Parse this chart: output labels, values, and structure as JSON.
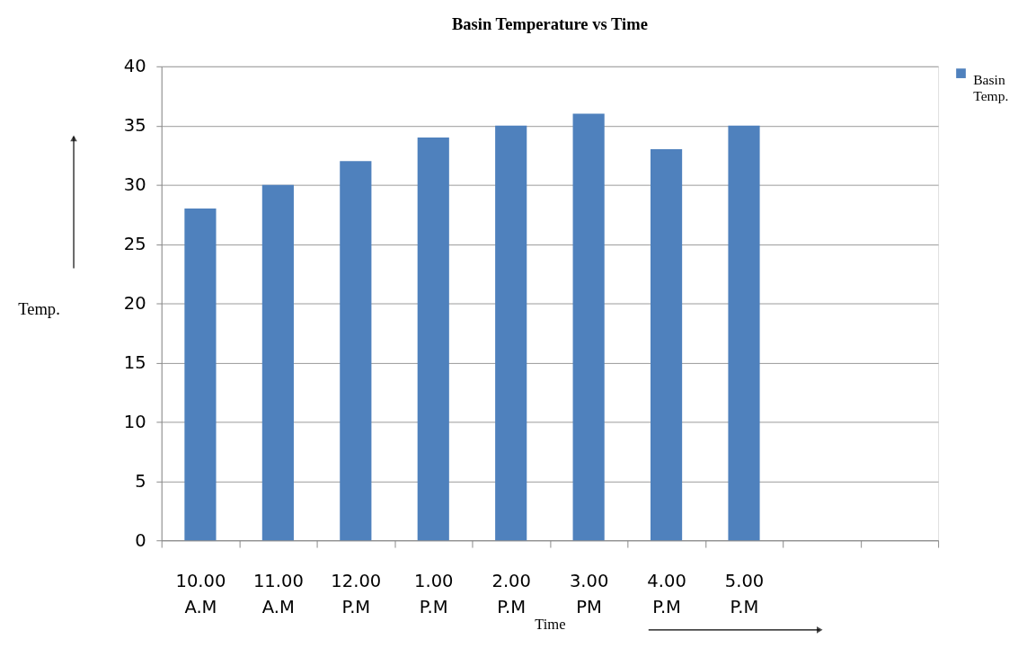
{
  "chart_data": {
    "type": "bar",
    "title": "Basin Temperature vs Time",
    "xlabel": "Time",
    "ylabel": "Temp.",
    "categories": [
      "10.00 A.M",
      "11.00 A.M",
      "12.00 P.M",
      "1.00 P.M",
      "2.00 P.M",
      "3.00 PM",
      "4.00 P.M",
      "5.00 P.M",
      null,
      null
    ],
    "series": [
      {
        "name": "Basin Temp.",
        "color": "#4f81bd",
        "values": [
          28,
          30,
          32,
          34,
          35,
          36,
          33,
          35,
          null,
          null
        ]
      }
    ],
    "ylim": [
      0,
      40
    ],
    "yticks": [
      0,
      5,
      10,
      15,
      20,
      25,
      30,
      35,
      40
    ],
    "grid": "y",
    "legend": "right"
  }
}
